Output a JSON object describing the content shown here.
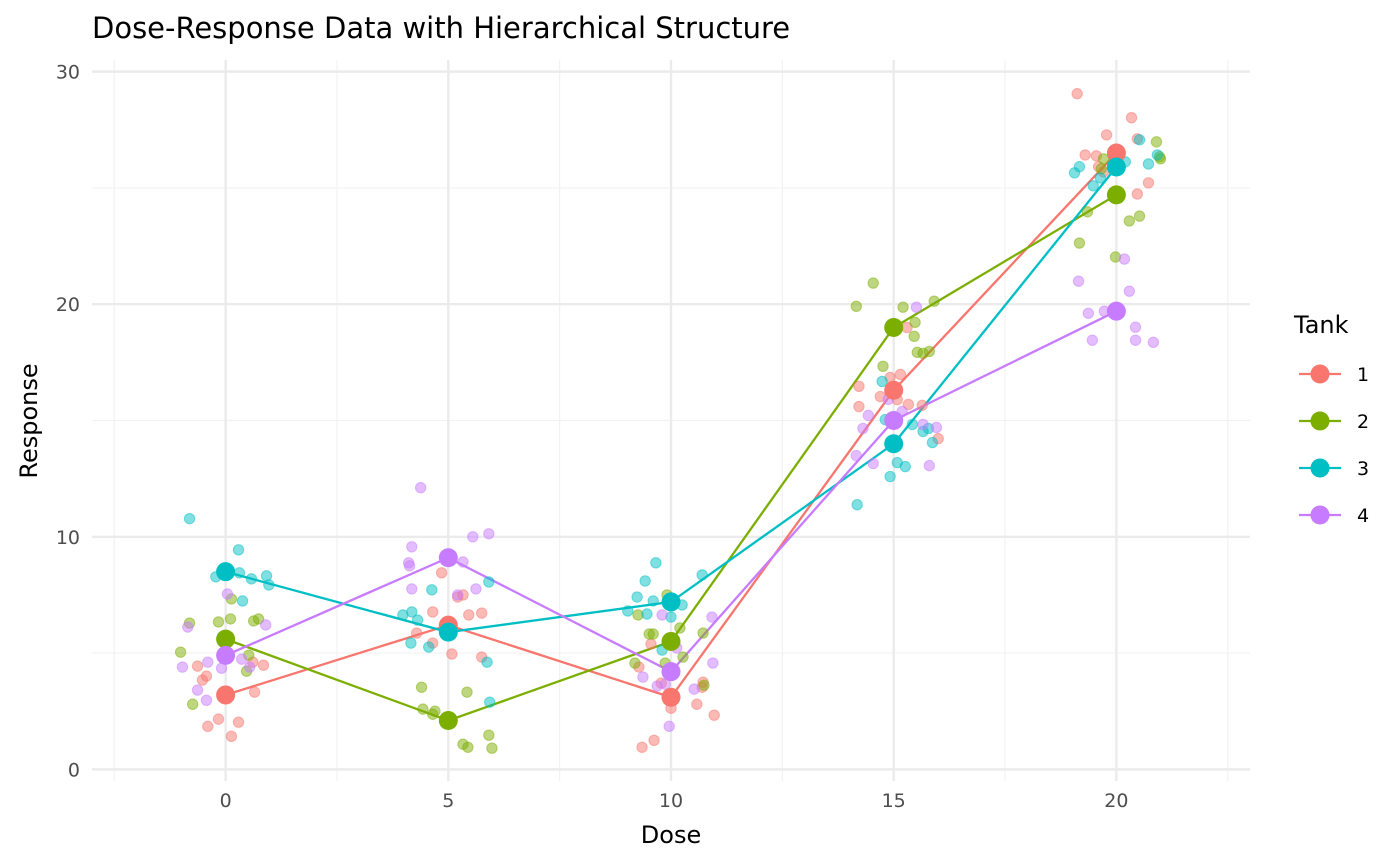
{
  "chart_data": {
    "type": "scatter",
    "title": "Dose-Response Data with Hierarchical Structure",
    "xlabel": "Dose",
    "ylabel": "Response",
    "xlim": [
      -3,
      23
    ],
    "ylim": [
      -0.5,
      30.5
    ],
    "xticks": [
      0,
      5,
      10,
      15,
      20
    ],
    "yticks": [
      0,
      10,
      20,
      30
    ],
    "grid": true,
    "legend": {
      "title": "Tank",
      "placement": "right"
    },
    "series": [
      {
        "name": "1",
        "color": "#F8766D",
        "means": [
          [
            0,
            3.2
          ],
          [
            5,
            6.2
          ],
          [
            10,
            3.1
          ],
          [
            15,
            16.3
          ],
          [
            20,
            26.5
          ]
        ],
        "points": [
          [
            -0.63,
            4.44
          ],
          [
            -0.43,
            4.01
          ],
          [
            -0.52,
            3.84
          ],
          [
            0.61,
            4.61
          ],
          [
            0.85,
            4.48
          ],
          [
            0.65,
            3.32
          ],
          [
            -0.16,
            2.16
          ],
          [
            -0.4,
            1.85
          ],
          [
            0.29,
            2.03
          ],
          [
            0.13,
            1.42
          ],
          [
            4.85,
            8.45
          ],
          [
            5.33,
            7.5
          ],
          [
            5.46,
            6.64
          ],
          [
            5.75,
            6.72
          ],
          [
            4.65,
            6.77
          ],
          [
            4.29,
            5.86
          ],
          [
            4.65,
            5.43
          ],
          [
            5.08,
            4.96
          ],
          [
            5.75,
            4.83
          ],
          [
            5.21,
            7.41
          ],
          [
            9.55,
            5.39
          ],
          [
            9.28,
            4.4
          ],
          [
            9.78,
            3.71
          ],
          [
            10.0,
            2.63
          ],
          [
            10.58,
            2.8
          ],
          [
            10.97,
            2.33
          ],
          [
            10.72,
            3.75
          ],
          [
            9.62,
            1.25
          ],
          [
            9.35,
            0.95
          ],
          [
            10.7,
            3.53
          ],
          [
            14.22,
            16.47
          ],
          [
            14.22,
            15.6
          ],
          [
            14.7,
            16.03
          ],
          [
            14.92,
            16.85
          ],
          [
            15.15,
            16.98
          ],
          [
            15.33,
            15.69
          ],
          [
            15.64,
            15.65
          ],
          [
            16.0,
            14.22
          ],
          [
            15.3,
            19.0
          ],
          [
            15.08,
            15.9
          ],
          [
            19.12,
            29.05
          ],
          [
            20.34,
            28.02
          ],
          [
            19.78,
            27.28
          ],
          [
            20.47,
            27.11
          ],
          [
            19.3,
            26.42
          ],
          [
            19.55,
            26.38
          ],
          [
            19.6,
            25.91
          ],
          [
            20.72,
            25.22
          ],
          [
            20.47,
            24.74
          ],
          [
            19.71,
            25.69
          ]
        ]
      },
      {
        "name": "2",
        "color": "#7CAE00",
        "means": [
          [
            0,
            5.6
          ],
          [
            5,
            2.1
          ],
          [
            10,
            5.5
          ],
          [
            15,
            19.0
          ],
          [
            20,
            24.7
          ]
        ],
        "points": [
          [
            -0.81,
            6.29
          ],
          [
            -1.01,
            5.04
          ],
          [
            -0.74,
            2.8
          ],
          [
            -0.16,
            6.34
          ],
          [
            0.11,
            6.47
          ],
          [
            0.13,
            7.33
          ],
          [
            0.63,
            6.38
          ],
          [
            0.74,
            6.47
          ],
          [
            0.52,
            4.91
          ],
          [
            0.47,
            4.22
          ],
          [
            4.4,
            3.53
          ],
          [
            4.43,
            2.59
          ],
          [
            4.7,
            2.5
          ],
          [
            4.65,
            2.37
          ],
          [
            5.42,
            3.32
          ],
          [
            5.33,
            1.08
          ],
          [
            5.44,
            0.95
          ],
          [
            5.91,
            1.47
          ],
          [
            5.98,
            0.91
          ],
          [
            9.91,
            7.5
          ],
          [
            9.26,
            6.64
          ],
          [
            9.51,
            5.82
          ],
          [
            9.6,
            5.82
          ],
          [
            10.2,
            6.08
          ],
          [
            10.72,
            5.86
          ],
          [
            9.19,
            4.57
          ],
          [
            9.87,
            4.57
          ],
          [
            10.27,
            4.83
          ],
          [
            10.74,
            3.62
          ],
          [
            14.54,
            20.91
          ],
          [
            14.16,
            19.91
          ],
          [
            15.21,
            19.87
          ],
          [
            15.91,
            20.13
          ],
          [
            15.48,
            19.22
          ],
          [
            15.46,
            18.62
          ],
          [
            15.53,
            17.93
          ],
          [
            15.66,
            17.89
          ],
          [
            15.8,
            17.97
          ],
          [
            14.76,
            17.33
          ],
          [
            19.71,
            26.25
          ],
          [
            20.9,
            26.98
          ],
          [
            20.99,
            26.25
          ],
          [
            19.35,
            23.97
          ],
          [
            20.29,
            23.58
          ],
          [
            20.52,
            23.79
          ],
          [
            19.17,
            22.63
          ],
          [
            19.98,
            22.03
          ],
          [
            19.66,
            25.82
          ],
          [
            20.97,
            26.34
          ]
        ]
      },
      {
        "name": "3",
        "color": "#00BFC4",
        "means": [
          [
            0,
            8.5
          ],
          [
            5,
            5.9
          ],
          [
            10,
            7.2
          ],
          [
            15,
            14.0
          ],
          [
            20,
            25.9
          ]
        ],
        "points": [
          [
            -0.81,
            10.78
          ],
          [
            0.29,
            9.44
          ],
          [
            -0.22,
            8.28
          ],
          [
            0.31,
            8.45
          ],
          [
            0.58,
            8.19
          ],
          [
            0.92,
            8.32
          ],
          [
            0.97,
            7.93
          ],
          [
            0.38,
            7.24
          ],
          [
            3.98,
            6.64
          ],
          [
            4.18,
            6.77
          ],
          [
            4.31,
            6.42
          ],
          [
            4.16,
            5.43
          ],
          [
            4.56,
            5.26
          ],
          [
            4.63,
            7.72
          ],
          [
            5.91,
            8.06
          ],
          [
            5.87,
            4.61
          ],
          [
            5.93,
            2.89
          ],
          [
            9.66,
            8.88
          ],
          [
            9.42,
            8.1
          ],
          [
            9.24,
            7.41
          ],
          [
            9.6,
            7.24
          ],
          [
            9.03,
            6.81
          ],
          [
            9.46,
            6.68
          ],
          [
            10.0,
            6.55
          ],
          [
            10.25,
            7.07
          ],
          [
            10.7,
            8.36
          ],
          [
            9.8,
            5.13
          ],
          [
            14.74,
            16.68
          ],
          [
            14.81,
            15.04
          ],
          [
            15.42,
            14.83
          ],
          [
            15.66,
            14.53
          ],
          [
            15.87,
            14.05
          ],
          [
            15.08,
            13.19
          ],
          [
            15.26,
            13.02
          ],
          [
            14.92,
            12.59
          ],
          [
            14.18,
            11.38
          ],
          [
            15.78,
            14.66
          ],
          [
            19.17,
            25.91
          ],
          [
            19.06,
            25.65
          ],
          [
            19.48,
            25.09
          ],
          [
            19.64,
            25.43
          ],
          [
            20.52,
            27.07
          ],
          [
            20.2,
            26.12
          ],
          [
            20.72,
            26.03
          ],
          [
            20.92,
            26.42
          ]
        ]
      },
      {
        "name": "4",
        "color": "#C77CFF",
        "means": [
          [
            0,
            4.9
          ],
          [
            5,
            9.1
          ],
          [
            10,
            4.2
          ],
          [
            15,
            15.0
          ],
          [
            20,
            19.7
          ]
        ],
        "points": [
          [
            -0.85,
            6.12
          ],
          [
            -0.97,
            4.4
          ],
          [
            -0.4,
            4.61
          ],
          [
            -0.09,
            4.35
          ],
          [
            -0.63,
            3.41
          ],
          [
            -0.43,
            2.97
          ],
          [
            0.04,
            7.54
          ],
          [
            0.36,
            4.74
          ],
          [
            0.9,
            6.21
          ],
          [
            0.54,
            4.4
          ],
          [
            4.38,
            12.11
          ],
          [
            4.18,
            9.57
          ],
          [
            4.11,
            8.88
          ],
          [
            4.13,
            8.75
          ],
          [
            4.18,
            7.76
          ],
          [
            5.55,
            10.0
          ],
          [
            5.91,
            10.13
          ],
          [
            5.33,
            8.92
          ],
          [
            5.21,
            7.5
          ],
          [
            5.62,
            7.76
          ],
          [
            9.8,
            6.64
          ],
          [
            10.92,
            6.55
          ],
          [
            9.37,
            3.97
          ],
          [
            9.69,
            3.58
          ],
          [
            9.87,
            3.66
          ],
          [
            10.52,
            3.45
          ],
          [
            10.94,
            4.57
          ],
          [
            9.96,
            1.85
          ],
          [
            10.13,
            5.22
          ],
          [
            15.51,
            19.87
          ],
          [
            14.43,
            15.22
          ],
          [
            14.31,
            14.66
          ],
          [
            14.88,
            15.91
          ],
          [
            15.66,
            14.83
          ],
          [
            15.96,
            14.7
          ],
          [
            14.16,
            13.49
          ],
          [
            14.54,
            13.15
          ],
          [
            15.8,
            13.06
          ],
          [
            15.19,
            15.39
          ],
          [
            20.18,
            21.94
          ],
          [
            19.15,
            20.99
          ],
          [
            20.29,
            20.56
          ],
          [
            19.37,
            19.61
          ],
          [
            19.73,
            19.7
          ],
          [
            20.43,
            19.01
          ],
          [
            19.46,
            18.45
          ],
          [
            20.43,
            18.45
          ],
          [
            20.83,
            18.36
          ]
        ]
      }
    ]
  }
}
